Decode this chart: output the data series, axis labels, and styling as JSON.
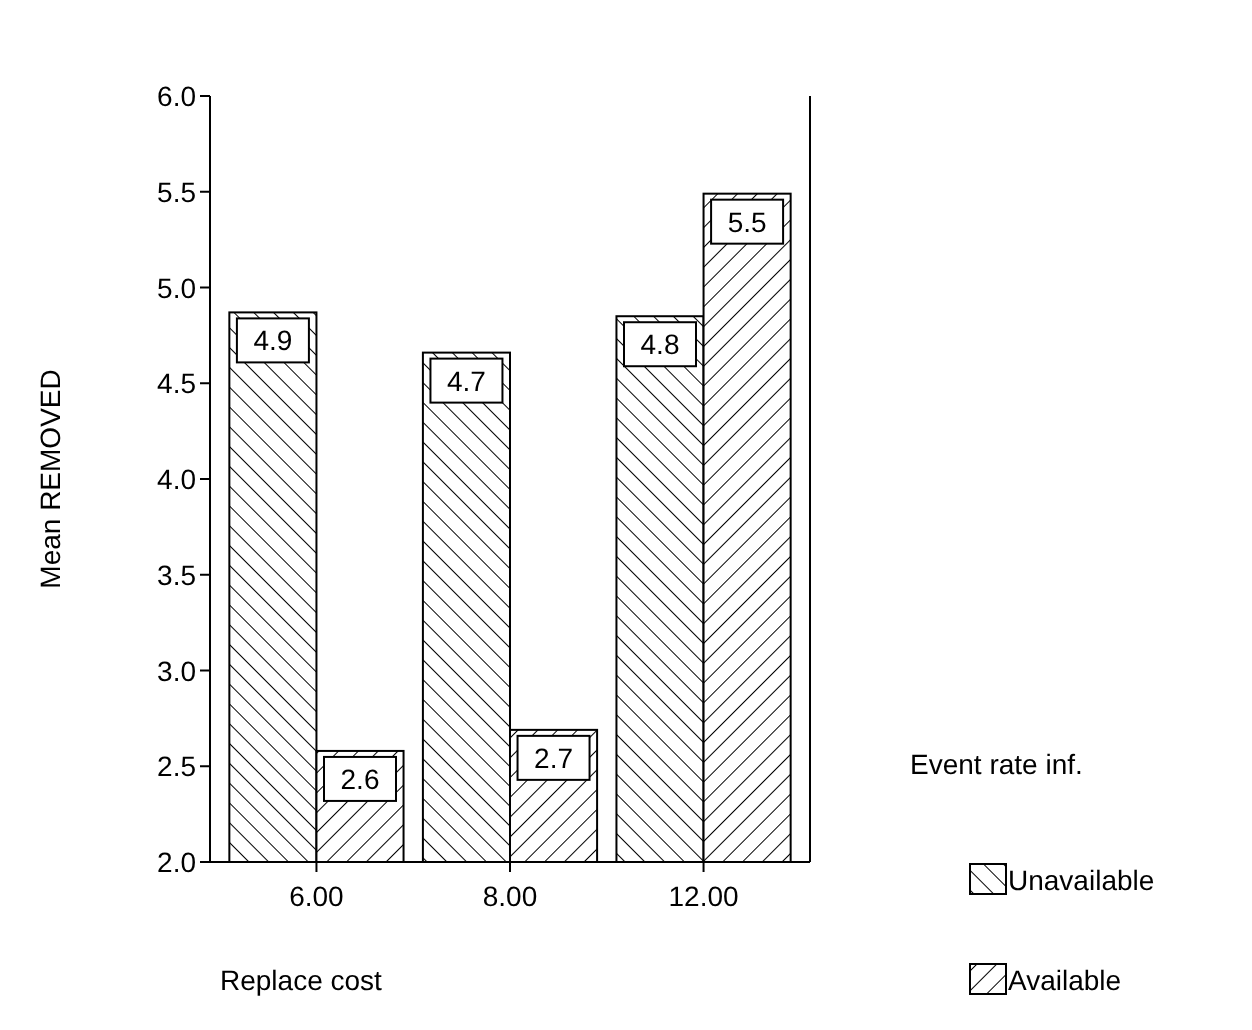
{
  "chart_data": {
    "type": "bar",
    "xlabel": "Replace cost",
    "ylabel": "Mean REMOVED",
    "legend_title": "Event rate inf.",
    "categories": [
      "6.00",
      "8.00",
      "12.00"
    ],
    "series": [
      {
        "name": "Unavailable",
        "color": "#000000",
        "values": [
          4.87,
          4.66,
          4.85
        ],
        "value_labels": [
          "4.9",
          "4.7",
          "4.8"
        ]
      },
      {
        "name": "Available",
        "color": "#000000",
        "values": [
          2.58,
          2.69,
          5.49
        ],
        "value_labels": [
          "2.6",
          "2.7",
          "5.5"
        ]
      }
    ],
    "ylim": [
      2,
      6
    ],
    "yticks": [
      {
        "value": 2,
        "label": "2.0"
      },
      {
        "value": 2.5,
        "label": "2.5"
      },
      {
        "value": 3,
        "label": "3.0"
      },
      {
        "value": 3.5,
        "label": "3.5"
      },
      {
        "value": 4,
        "label": "4.0"
      },
      {
        "value": 4.5,
        "label": "4.5"
      },
      {
        "value": 5,
        "label": "5.0"
      },
      {
        "value": 5.5,
        "label": "5.5"
      },
      {
        "value": 6,
        "label": "6.0"
      }
    ],
    "legend": "right",
    "grid": false
  }
}
